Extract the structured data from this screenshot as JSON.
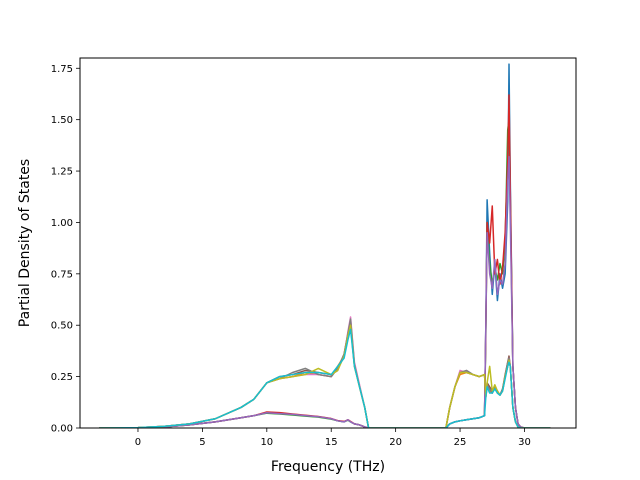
{
  "chart_data": {
    "type": "line",
    "title": "",
    "xlabel": "Frequency (THz)",
    "ylabel": "Partial Density of States",
    "xlim": [
      -4.5,
      34.0
    ],
    "ylim": [
      0.0,
      1.8
    ],
    "xticks": [
      0,
      5,
      10,
      15,
      20,
      25,
      30
    ],
    "yticks": [
      0.0,
      0.25,
      0.5,
      0.75,
      1.0,
      1.25,
      1.5,
      1.75
    ],
    "xtick_labels": [
      "0",
      "5",
      "10",
      "15",
      "20",
      "25",
      "30"
    ],
    "ytick_labels": [
      "0.00",
      "0.25",
      "0.50",
      "0.75",
      "1.00",
      "1.25",
      "1.50",
      "1.75"
    ],
    "grid": false,
    "legend": "none",
    "series": [
      {
        "color": "#1f77b4",
        "x": [
          -3,
          0,
          2,
          4,
          6,
          8,
          9,
          10,
          11,
          12,
          13,
          14,
          15,
          15.5,
          16,
          16.3,
          16.5,
          16.8,
          17.2,
          17.6,
          17.9,
          18.5,
          20,
          22,
          23.9,
          24.2,
          24.6,
          25,
          25.5,
          26,
          26.5,
          26.9,
          27,
          27.1,
          27.3,
          27.5,
          27.7,
          27.9,
          28.1,
          28.3,
          28.5,
          28.7,
          28.8,
          28.9,
          29.1,
          29.3,
          29.5,
          29.7,
          30,
          32
        ],
        "y": [
          0,
          0.001,
          0.005,
          0.015,
          0.03,
          0.05,
          0.06,
          0.075,
          0.07,
          0.065,
          0.06,
          0.055,
          0.045,
          0.035,
          0.03,
          0.04,
          0.03,
          0.02,
          0.015,
          0.005,
          0,
          0,
          0,
          0,
          0,
          0.02,
          0.03,
          0.035,
          0.04,
          0.045,
          0.05,
          0.06,
          0.5,
          1.11,
          0.85,
          0.65,
          0.8,
          0.62,
          0.75,
          0.68,
          0.75,
          1.1,
          1.77,
          1.2,
          0.3,
          0.1,
          0.02,
          0.005,
          0,
          0
        ]
      },
      {
        "color": "#ff7f0e",
        "x": [
          -3,
          0,
          2,
          4,
          6,
          8,
          9,
          10,
          11,
          12,
          13,
          14,
          15,
          15.5,
          16,
          16.3,
          16.5,
          16.8,
          17.2,
          17.6,
          17.9,
          18.5,
          20,
          22,
          23.9,
          24.2,
          24.6,
          25,
          25.5,
          26,
          26.5,
          26.9,
          27,
          27.1,
          27.3,
          27.5,
          27.7,
          27.9,
          28.1,
          28.3,
          28.5,
          28.7,
          28.8,
          28.9,
          29.1,
          29.3,
          29.5,
          29.7,
          30,
          32
        ],
        "y": [
          0,
          0.002,
          0.008,
          0.02,
          0.045,
          0.1,
          0.14,
          0.22,
          0.24,
          0.25,
          0.27,
          0.26,
          0.25,
          0.3,
          0.35,
          0.45,
          0.5,
          0.3,
          0.2,
          0.1,
          0,
          0,
          0,
          0,
          0,
          0.1,
          0.2,
          0.26,
          0.27,
          0.26,
          0.25,
          0.26,
          0.15,
          0.2,
          0.18,
          0.17,
          0.2,
          0.18,
          0.16,
          0.18,
          0.25,
          0.3,
          0.33,
          0.3,
          0.1,
          0.03,
          0.005,
          0,
          0,
          0
        ]
      },
      {
        "color": "#2ca02c",
        "x": [
          -3,
          0,
          2,
          4,
          6,
          8,
          9,
          10,
          11,
          12,
          13,
          14,
          15,
          15.5,
          16,
          16.3,
          16.5,
          16.8,
          17.2,
          17.6,
          17.9,
          18.5,
          20,
          22,
          23.9,
          24.2,
          24.6,
          25,
          25.5,
          26,
          26.5,
          26.9,
          27,
          27.1,
          27.3,
          27.5,
          27.7,
          27.9,
          28.1,
          28.3,
          28.5,
          28.7,
          28.8,
          28.9,
          29.1,
          29.3,
          29.5,
          29.7,
          30,
          32
        ],
        "y": [
          0,
          0.001,
          0.005,
          0.015,
          0.03,
          0.05,
          0.06,
          0.072,
          0.068,
          0.063,
          0.058,
          0.053,
          0.043,
          0.035,
          0.03,
          0.038,
          0.03,
          0.02,
          0.015,
          0.005,
          0,
          0,
          0,
          0,
          0,
          0.02,
          0.03,
          0.035,
          0.04,
          0.045,
          0.05,
          0.06,
          0.45,
          1.0,
          0.8,
          0.7,
          0.78,
          0.72,
          0.8,
          0.75,
          0.9,
          1.45,
          1.5,
          1.1,
          0.3,
          0.1,
          0.02,
          0.005,
          0,
          0
        ]
      },
      {
        "color": "#d62728",
        "x": [
          -3,
          0,
          2,
          4,
          6,
          8,
          9,
          10,
          11,
          12,
          13,
          14,
          15,
          15.5,
          16,
          16.3,
          16.5,
          16.8,
          17.2,
          17.6,
          17.9,
          18.5,
          20,
          22,
          23.9,
          24.2,
          24.6,
          25,
          25.5,
          26,
          26.5,
          26.9,
          27,
          27.1,
          27.3,
          27.5,
          27.7,
          27.9,
          28.1,
          28.3,
          28.5,
          28.7,
          28.8,
          28.9,
          29.1,
          29.3,
          29.5,
          29.7,
          30,
          32
        ],
        "y": [
          0,
          0.001,
          0.005,
          0.015,
          0.03,
          0.05,
          0.06,
          0.078,
          0.075,
          0.068,
          0.062,
          0.056,
          0.046,
          0.036,
          0.032,
          0.04,
          0.032,
          0.02,
          0.015,
          0.005,
          0,
          0,
          0,
          0,
          0,
          0.02,
          0.03,
          0.035,
          0.04,
          0.045,
          0.05,
          0.06,
          0.48,
          1.0,
          0.9,
          1.08,
          0.75,
          0.82,
          0.7,
          0.78,
          0.95,
          1.3,
          1.62,
          1.15,
          0.3,
          0.1,
          0.02,
          0.005,
          0,
          0
        ]
      },
      {
        "color": "#9467bd",
        "x": [
          -3,
          0,
          2,
          4,
          6,
          8,
          9,
          10,
          11,
          12,
          13,
          14,
          15,
          15.5,
          16,
          16.3,
          16.5,
          16.8,
          17.2,
          17.6,
          17.9,
          18.5,
          20,
          22,
          23.9,
          24.2,
          24.6,
          25,
          25.5,
          26,
          26.5,
          26.9,
          27,
          27.1,
          27.3,
          27.5,
          27.7,
          27.9,
          28.1,
          28.3,
          28.5,
          28.7,
          28.8,
          28.9,
          29.1,
          29.3,
          29.5,
          29.7,
          30,
          32
        ],
        "y": [
          0,
          0.001,
          0.005,
          0.015,
          0.03,
          0.05,
          0.06,
          0.074,
          0.07,
          0.066,
          0.06,
          0.055,
          0.045,
          0.035,
          0.03,
          0.04,
          0.03,
          0.02,
          0.015,
          0.005,
          0,
          0,
          0,
          0,
          0,
          0.02,
          0.03,
          0.035,
          0.04,
          0.045,
          0.05,
          0.06,
          0.5,
          0.95,
          0.75,
          0.68,
          0.82,
          0.65,
          0.72,
          0.7,
          0.8,
          1.2,
          1.32,
          1.0,
          0.3,
          0.1,
          0.02,
          0.005,
          0,
          0
        ]
      },
      {
        "color": "#8c564b",
        "x": [
          -3,
          0,
          2,
          4,
          6,
          8,
          9,
          10,
          11,
          12,
          13,
          14,
          15,
          15.5,
          16,
          16.3,
          16.5,
          16.8,
          17.2,
          17.6,
          17.9,
          18.5,
          20,
          22,
          23.9,
          24.2,
          24.6,
          25,
          25.5,
          26,
          26.5,
          26.9,
          27,
          27.1,
          27.3,
          27.5,
          27.7,
          27.9,
          28.1,
          28.3,
          28.5,
          28.7,
          28.8,
          28.9,
          29.1,
          29.3,
          29.5,
          29.7,
          30,
          32
        ],
        "y": [
          0,
          0.002,
          0.008,
          0.02,
          0.045,
          0.1,
          0.14,
          0.22,
          0.25,
          0.26,
          0.28,
          0.27,
          0.26,
          0.28,
          0.36,
          0.46,
          0.52,
          0.31,
          0.2,
          0.1,
          0,
          0,
          0,
          0,
          0,
          0.1,
          0.2,
          0.27,
          0.27,
          0.26,
          0.25,
          0.26,
          0.16,
          0.22,
          0.2,
          0.18,
          0.2,
          0.17,
          0.16,
          0.19,
          0.26,
          0.32,
          0.35,
          0.3,
          0.1,
          0.03,
          0.005,
          0,
          0,
          0
        ]
      },
      {
        "color": "#e377c2",
        "x": [
          -3,
          0,
          2,
          4,
          6,
          8,
          9,
          10,
          11,
          12,
          13,
          14,
          15,
          15.5,
          16,
          16.3,
          16.5,
          16.8,
          17.2,
          17.6,
          17.9,
          18.5,
          20,
          22,
          23.9,
          24.2,
          24.6,
          25,
          25.5,
          26,
          26.5,
          26.9,
          27,
          27.1,
          27.3,
          27.5,
          27.7,
          27.9,
          28.1,
          28.3,
          28.5,
          28.7,
          28.8,
          28.9,
          29.1,
          29.3,
          29.5,
          29.7,
          30,
          32
        ],
        "y": [
          0,
          0.002,
          0.008,
          0.02,
          0.045,
          0.1,
          0.14,
          0.22,
          0.24,
          0.25,
          0.26,
          0.26,
          0.25,
          0.29,
          0.35,
          0.47,
          0.54,
          0.32,
          0.21,
          0.1,
          0,
          0,
          0,
          0,
          0,
          0.1,
          0.2,
          0.28,
          0.27,
          0.26,
          0.25,
          0.26,
          0.15,
          0.2,
          0.19,
          0.17,
          0.2,
          0.18,
          0.16,
          0.18,
          0.25,
          0.31,
          0.34,
          0.3,
          0.1,
          0.03,
          0.005,
          0,
          0,
          0
        ]
      },
      {
        "color": "#7f7f7f",
        "x": [
          -3,
          0,
          2,
          4,
          6,
          8,
          9,
          10,
          11,
          12,
          13,
          14,
          15,
          15.5,
          16,
          16.3,
          16.5,
          16.8,
          17.2,
          17.6,
          17.9,
          18.5,
          20,
          22,
          23.9,
          24.2,
          24.6,
          25,
          25.5,
          26,
          26.5,
          26.9,
          27,
          27.1,
          27.3,
          27.5,
          27.7,
          27.9,
          28.1,
          28.3,
          28.5,
          28.7,
          28.8,
          28.9,
          29.1,
          29.3,
          29.5,
          29.7,
          30,
          32
        ],
        "y": [
          0,
          0.002,
          0.008,
          0.02,
          0.045,
          0.1,
          0.14,
          0.22,
          0.24,
          0.27,
          0.29,
          0.26,
          0.25,
          0.29,
          0.36,
          0.46,
          0.53,
          0.31,
          0.2,
          0.1,
          0,
          0,
          0,
          0,
          0,
          0.1,
          0.2,
          0.27,
          0.28,
          0.26,
          0.25,
          0.26,
          0.16,
          0.21,
          0.19,
          0.17,
          0.2,
          0.18,
          0.16,
          0.19,
          0.25,
          0.32,
          0.34,
          0.3,
          0.1,
          0.03,
          0.005,
          0,
          0,
          0
        ]
      },
      {
        "color": "#bcbd22",
        "x": [
          -3,
          0,
          2,
          4,
          6,
          8,
          9,
          10,
          11,
          12,
          13,
          14,
          15,
          15.5,
          16,
          16.3,
          16.5,
          16.8,
          17.2,
          17.6,
          17.9,
          18.5,
          20,
          22,
          23.9,
          24.2,
          24.6,
          25,
          25.5,
          26,
          26.5,
          26.9,
          27,
          27.1,
          27.3,
          27.5,
          27.7,
          27.9,
          28.1,
          28.3,
          28.5,
          28.7,
          28.8,
          28.9,
          29.1,
          29.3,
          29.5,
          29.7,
          30,
          32
        ],
        "y": [
          0,
          0.002,
          0.008,
          0.02,
          0.045,
          0.1,
          0.14,
          0.22,
          0.24,
          0.25,
          0.26,
          0.29,
          0.26,
          0.28,
          0.35,
          0.45,
          0.5,
          0.3,
          0.2,
          0.1,
          0,
          0,
          0,
          0,
          0,
          0.1,
          0.2,
          0.27,
          0.27,
          0.26,
          0.25,
          0.26,
          0.15,
          0.22,
          0.3,
          0.18,
          0.21,
          0.18,
          0.16,
          0.18,
          0.25,
          0.3,
          0.33,
          0.3,
          0.1,
          0.03,
          0.005,
          0,
          0,
          0
        ]
      },
      {
        "color": "#17becf",
        "x": [
          -3,
          0,
          2,
          4,
          6,
          8,
          9,
          10,
          11,
          12,
          13,
          14,
          15,
          15.5,
          16,
          16.3,
          16.5,
          16.8,
          17.2,
          17.6,
          17.9,
          18.5,
          20,
          22,
          23.9,
          24.2,
          24.6,
          25,
          25.5,
          26,
          26.5,
          26.9,
          27,
          27.1,
          27.3,
          27.5,
          27.7,
          27.9,
          28.1,
          28.3,
          28.5,
          28.7,
          28.8,
          28.9,
          29.1,
          29.3,
          29.5,
          29.7,
          30,
          32
        ],
        "y": [
          0,
          0.002,
          0.008,
          0.02,
          0.045,
          0.1,
          0.14,
          0.22,
          0.25,
          0.26,
          0.27,
          0.27,
          0.26,
          0.3,
          0.34,
          0.43,
          0.48,
          0.3,
          0.2,
          0.1,
          0,
          0,
          0,
          0,
          0,
          0.02,
          0.03,
          0.035,
          0.04,
          0.045,
          0.05,
          0.06,
          0.15,
          0.2,
          0.17,
          0.17,
          0.19,
          0.17,
          0.16,
          0.18,
          0.24,
          0.3,
          0.32,
          0.3,
          0.1,
          0.03,
          0.005,
          0,
          0,
          0
        ]
      }
    ]
  }
}
